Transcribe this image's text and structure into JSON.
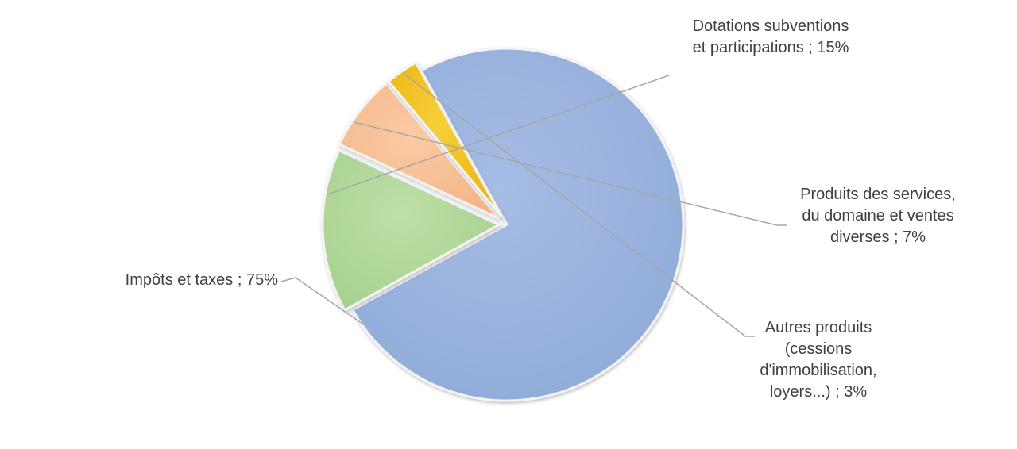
{
  "chart_data": {
    "type": "pie",
    "title": "",
    "categories": [
      "Impôts et taxes",
      "Dotations subventions et participations",
      "Produits des services, du domaine et ventes diverses",
      "Autres produits (cessions d'immobilisation, loyers...)"
    ],
    "values": [
      75,
      15,
      7,
      3
    ],
    "data_labels": [
      "Impôts et taxes ; 75%",
      "Dotations subventions\net participations ; 15%",
      "Produits des services,\ndu domaine et ventes\ndiverses ; 7%",
      "Autres produits\n(cessions\nd'immobilisation,\nloyers...) ; 3%"
    ],
    "colors": [
      "#9ab3de",
      "#b3d89c",
      "#f8c197",
      "#f5c222"
    ],
    "legend": "none",
    "exploded": true
  }
}
